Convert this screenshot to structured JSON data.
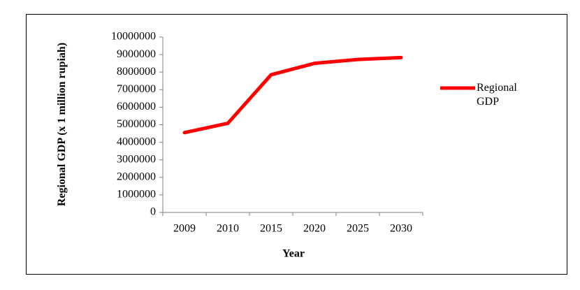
{
  "chart_data": {
    "type": "line",
    "x_label": "Year",
    "y_label": "Regional GDP (x 1 million rupiah)",
    "categories": [
      "2009",
      "2010",
      "2015",
      "2020",
      "2025",
      "2030"
    ],
    "series": [
      {
        "name": "Regional GDP",
        "color": "#ff0000",
        "values": [
          4550000,
          5080000,
          7850000,
          8500000,
          8720000,
          8830000
        ]
      }
    ],
    "ylim": [
      0,
      10000000
    ],
    "yticks": [
      0,
      1000000,
      2000000,
      3000000,
      4000000,
      5000000,
      6000000,
      7000000,
      8000000,
      9000000,
      10000000
    ],
    "legend": "right"
  }
}
